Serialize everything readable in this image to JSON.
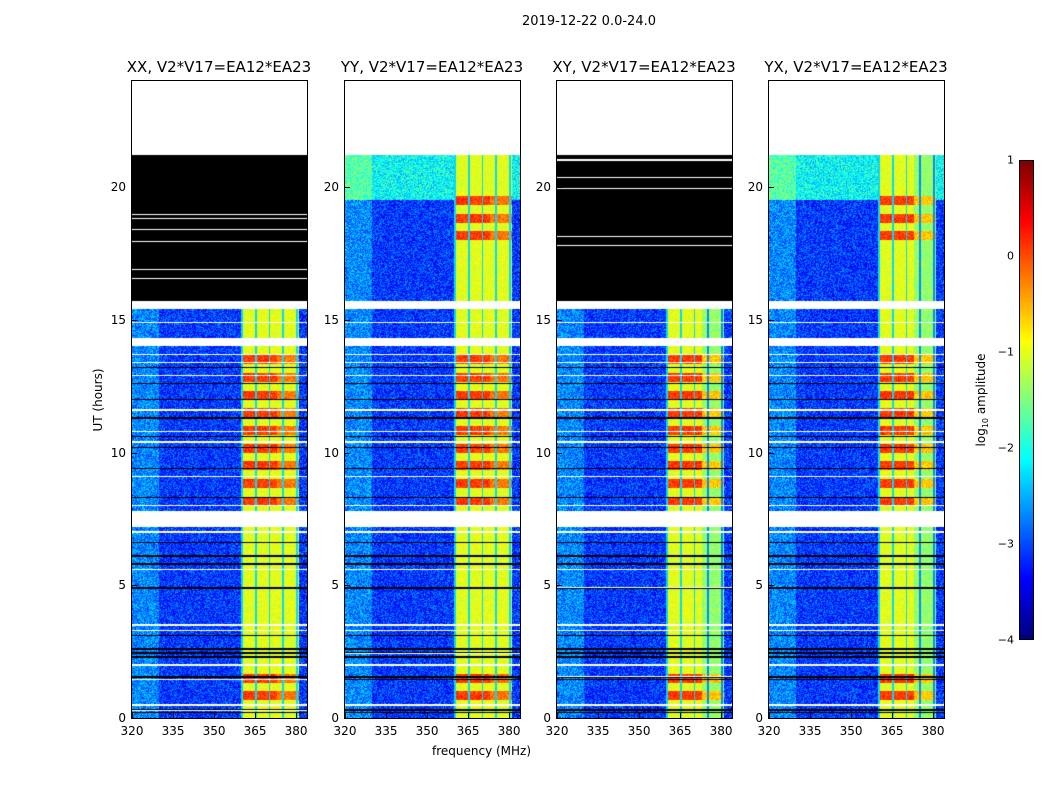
{
  "chart_data": {
    "type": "heatmap",
    "title": "2019-12-22 0.0-24.0",
    "xlabel": "frequency (MHz)",
    "ylabel": "UT (hours)",
    "xlim": [
      320,
      384
    ],
    "ylim": [
      0,
      24
    ],
    "xticks": [
      "320",
      "335",
      "350",
      "365",
      "380"
    ],
    "yticks": [
      "0",
      "5",
      "10",
      "15",
      "20"
    ],
    "colormap": "jet",
    "colorbar": {
      "label": "log10 amplitude",
      "label_main": "log",
      "label_sub": "10",
      "label_rest": " amplitude",
      "range": [
        -4,
        1
      ],
      "ticks": [
        "1",
        "0",
        "−1",
        "−2",
        "−3",
        "−4"
      ]
    },
    "rfi_band_MHz": [
      360,
      381
    ],
    "data_end_hour": 21.2,
    "flagged_gaps_hours": [
      [
        7.2,
        7.8
      ],
      [
        14.0,
        14.3
      ],
      [
        15.4,
        15.7
      ]
    ],
    "panels": [
      {
        "title": "XX, V2*V17=EA12*EA23",
        "zeroed_hours": [
          15.7,
          21.2
        ]
      },
      {
        "title": "YY, V2*V17=EA12*EA23",
        "zeroed_hours": []
      },
      {
        "title": "XY, V2*V17=EA12*EA23",
        "zeroed_hours": [
          15.7,
          21.2
        ]
      },
      {
        "title": "YX, V2*V17=EA12*EA23",
        "zeroed_hours": []
      }
    ]
  }
}
